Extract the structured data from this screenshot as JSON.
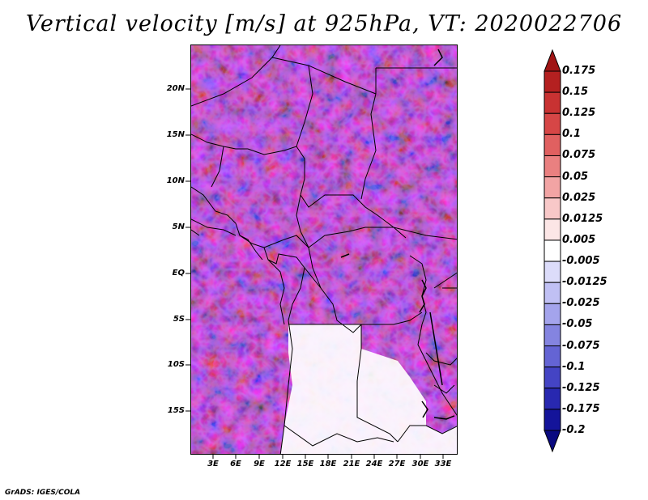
{
  "title": "Vertical velocity [m/s] at 925hPa, VT: 2020022706",
  "credit": "GrADS: IGES/COLA",
  "map": {
    "lat_labels": [
      "20N",
      "15N",
      "10N",
      "5N",
      "EQ",
      "5S",
      "10S",
      "15S"
    ],
    "lon_labels": [
      "3E",
      "6E",
      "9E",
      "12E",
      "15E",
      "18E",
      "21E",
      "24E",
      "27E",
      "30E",
      "33E"
    ],
    "lon_range": [
      0,
      35
    ],
    "lat_range": [
      -20,
      25
    ]
  },
  "colorbar": {
    "labels": [
      "0.175",
      "0.15",
      "0.125",
      "0.1",
      "0.075",
      "0.05",
      "0.025",
      "0.0125",
      "0.005",
      "-0.005",
      "-0.0125",
      "-0.025",
      "-0.05",
      "-0.075",
      "-0.1",
      "-0.125",
      "-0.175",
      "-0.2"
    ],
    "colors": [
      "#a01414",
      "#b42020",
      "#c83232",
      "#d64646",
      "#e06060",
      "#ea8080",
      "#f2a4a4",
      "#f8c8c8",
      "#fce6e6",
      "#ffffff",
      "#dcdcfa",
      "#c0c0f4",
      "#a4a4ec",
      "#8484e0",
      "#6464d4",
      "#4444c4",
      "#2828b0",
      "#14149a",
      "#0a0a80"
    ]
  }
}
